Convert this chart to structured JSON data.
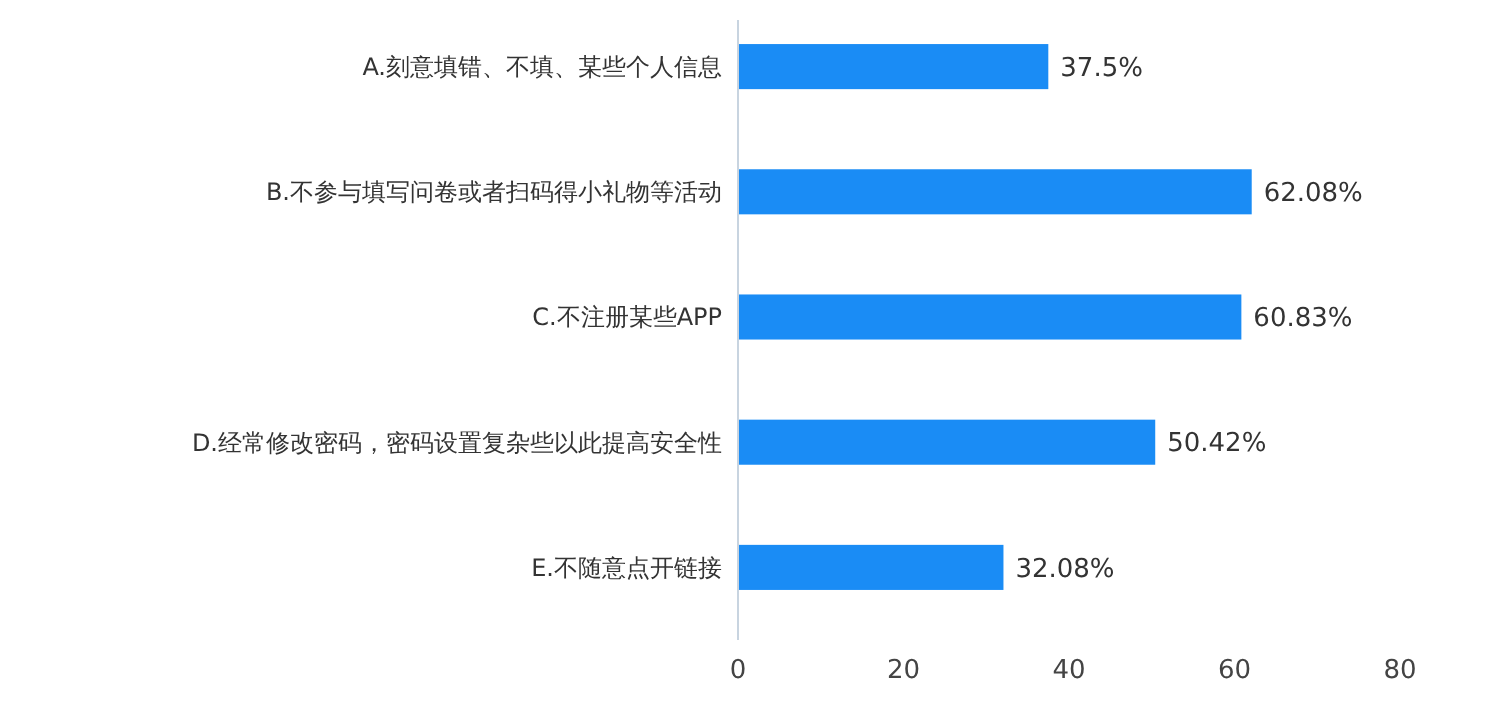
{
  "chart_data": {
    "type": "bar",
    "orientation": "horizontal",
    "categories": [
      "A.刻意填错、不填、某些个人信息",
      "B.不参与填写问卷或者扫码得小礼物等活动",
      "C.不注册某些APP",
      "D.经常修改密码，密码设置复杂些以此提高安全性",
      "E.不随意点开链接"
    ],
    "values": [
      37.5,
      62.08,
      60.83,
      50.42,
      32.08
    ],
    "value_labels": [
      "37.5%",
      "62.08%",
      "60.83%",
      "50.42%",
      "32.08%"
    ],
    "color": "#1a8cf5",
    "xlim": [
      0,
      80
    ],
    "xticks": [
      0,
      20,
      40,
      60,
      80
    ],
    "grid": false
  }
}
